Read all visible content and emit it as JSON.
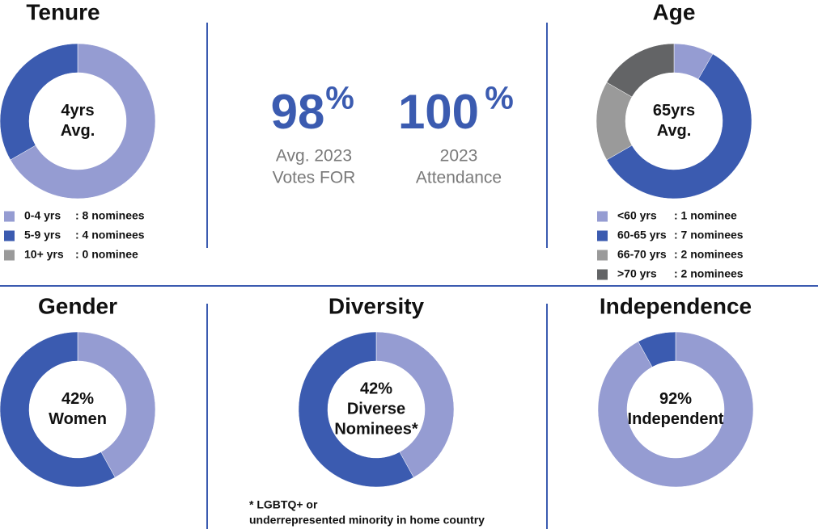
{
  "chart_data": [
    {
      "type": "donut",
      "title": "Tenure",
      "center_text": [
        "4yrs",
        "Avg."
      ],
      "categories": [
        "0-4 yrs",
        "5-9 yrs",
        "10+ yrs"
      ],
      "values": [
        8,
        4,
        0
      ],
      "value_labels": [
        ": 8 nominees",
        ": 4 nominees",
        ": 0 nominee"
      ],
      "colors": [
        "#959cd2",
        "#3b5bb0",
        "#9a9a9a"
      ]
    },
    {
      "type": "stat",
      "items": [
        {
          "value": 98,
          "unit": "%",
          "label": [
            "Avg. 2023",
            "Votes FOR"
          ]
        },
        {
          "value": 100,
          "unit": "%",
          "label": [
            "2023",
            "Attendance"
          ]
        }
      ]
    },
    {
      "type": "donut",
      "title": "Age",
      "center_text": [
        "65yrs",
        "Avg."
      ],
      "categories": [
        "<60 yrs",
        "60-65 yrs",
        "66-70 yrs",
        ">70 yrs"
      ],
      "values": [
        1,
        7,
        2,
        2
      ],
      "value_labels": [
        ": 1 nominee",
        ": 7 nominees",
        ": 2 nominees",
        ": 2 nominees"
      ],
      "colors": [
        "#959cd2",
        "#3b5bb0",
        "#9a9a9a",
        "#636466"
      ]
    },
    {
      "type": "donut",
      "title": "Gender",
      "center_text": [
        "Women"
      ],
      "values": [
        42,
        58
      ],
      "value_labels": [
        "42%",
        null
      ],
      "colors": [
        "#959cd2",
        "#3b5bb0"
      ]
    },
    {
      "type": "donut",
      "title": "Diversity",
      "center_text": [
        "Diverse",
        "Nominees*"
      ],
      "values": [
        42,
        58
      ],
      "value_labels": [
        "42%",
        null
      ],
      "colors": [
        "#959cd2",
        "#3b5bb0"
      ],
      "note": [
        "* LGBTQ+ or",
        "underrepresented minority in home country"
      ]
    },
    {
      "type": "donut",
      "title": "Independence",
      "center_text": [
        "Independent"
      ],
      "values": [
        92,
        8
      ],
      "value_labels": [
        "92%",
        null
      ],
      "colors": [
        "#959cd2",
        "#3b5bb0"
      ]
    }
  ]
}
